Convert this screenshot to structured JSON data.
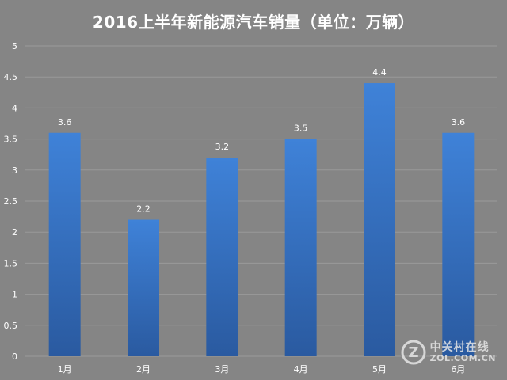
{
  "chart_data": {
    "type": "bar",
    "title": "2016上半年新能源汽车销量（单位：万辆）",
    "categories": [
      "1月",
      "2月",
      "3月",
      "4月",
      "5月",
      "6月"
    ],
    "values": [
      3.6,
      2.2,
      3.2,
      3.5,
      4.4,
      3.6
    ],
    "data_labels": [
      "3.6",
      "2.2",
      "3.2",
      "3.5",
      "4.4",
      "3.6"
    ],
    "y_ticks": [
      "0",
      "0.5",
      "1",
      "1.5",
      "2",
      "2.5",
      "3",
      "3.5",
      "4",
      "4.5",
      "5"
    ],
    "ylim": [
      0,
      5
    ],
    "grid": true,
    "legend": "none",
    "colors": {
      "background": "#858585",
      "bar_top": "#3f82d8",
      "bar_bottom": "#2a5aa0",
      "grid": "#9a9a9a",
      "text": "#ffffff"
    }
  },
  "watermark": {
    "cn": "中关村在线",
    "en": "ZOL.COM.CN",
    "logo_letter": "Z"
  }
}
